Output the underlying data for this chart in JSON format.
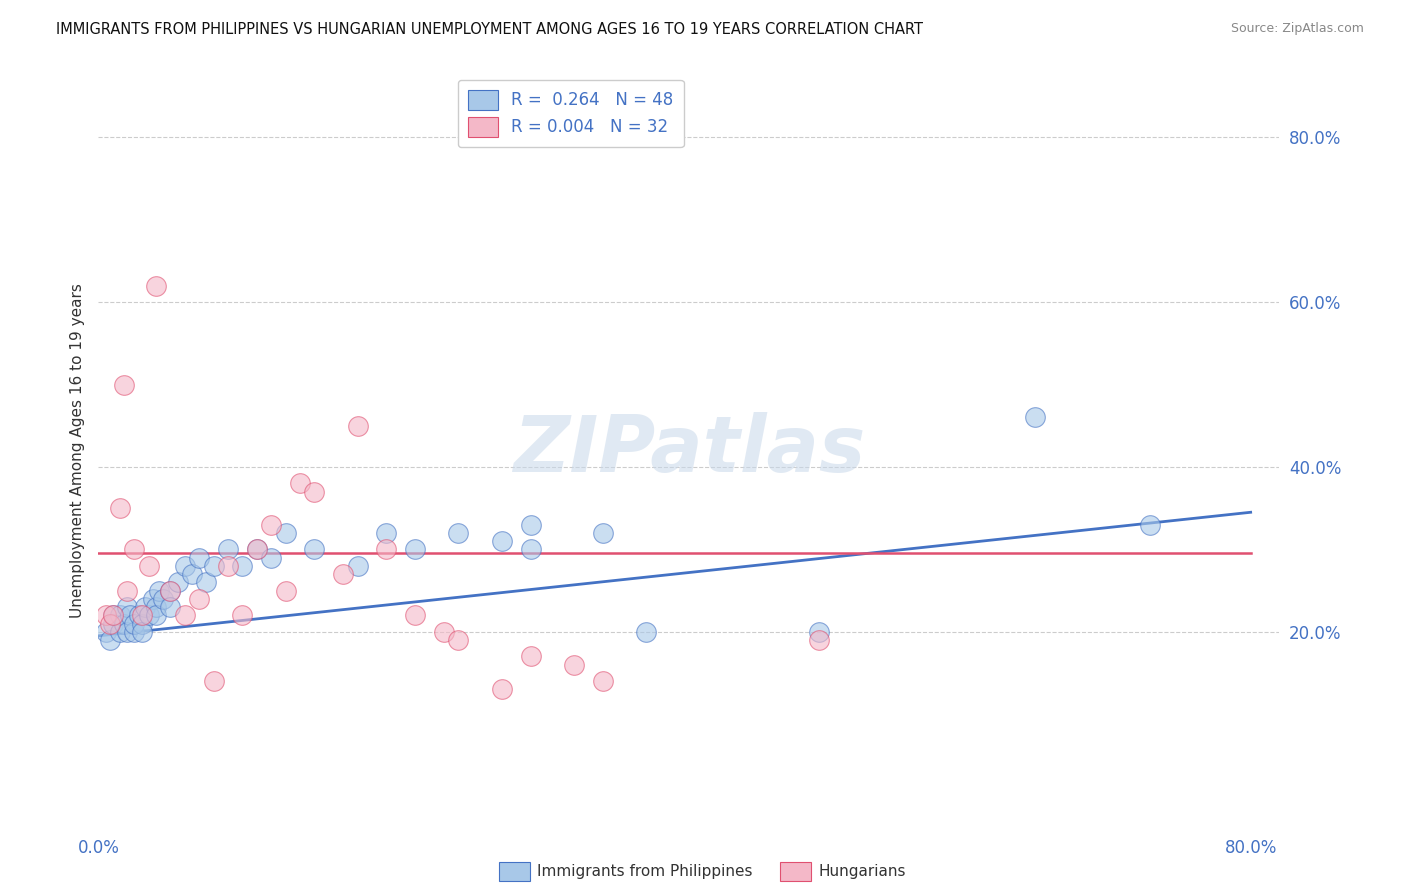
{
  "title": "IMMIGRANTS FROM PHILIPPINES VS HUNGARIAN UNEMPLOYMENT AMONG AGES 16 TO 19 YEARS CORRELATION CHART",
  "source": "Source: ZipAtlas.com",
  "ylabel": "Unemployment Among Ages 16 to 19 years",
  "legend_label1": "Immigrants from Philippines",
  "legend_label2": "Hungarians",
  "legend_r1": "R =  0.264",
  "legend_n1": "N = 48",
  "legend_r2": "R = 0.004",
  "legend_n2": "N = 32",
  "xlim": [
    0.0,
    0.82
  ],
  "ylim": [
    -0.04,
    0.88
  ],
  "yticks": [
    0.2,
    0.4,
    0.6,
    0.8
  ],
  "ytick_labels": [
    "20.0%",
    "40.0%",
    "60.0%",
    "80.0%"
  ],
  "xtick_labels": [
    "0.0%",
    "80.0%"
  ],
  "xtick_pos": [
    0.0,
    0.8
  ],
  "color_blue": "#a8c8e8",
  "color_pink": "#f4b8c8",
  "line_blue": "#4472c4",
  "line_pink": "#e05070",
  "grid_color": "#cccccc",
  "philippines_x": [
    0.005,
    0.008,
    0.01,
    0.01,
    0.015,
    0.015,
    0.018,
    0.02,
    0.02,
    0.022,
    0.025,
    0.025,
    0.028,
    0.03,
    0.03,
    0.032,
    0.035,
    0.038,
    0.04,
    0.04,
    0.042,
    0.045,
    0.05,
    0.05,
    0.055,
    0.06,
    0.065,
    0.07,
    0.075,
    0.08,
    0.09,
    0.1,
    0.11,
    0.12,
    0.13,
    0.15,
    0.18,
    0.2,
    0.22,
    0.25,
    0.28,
    0.3,
    0.3,
    0.35,
    0.38,
    0.5,
    0.65,
    0.73
  ],
  "philippines_y": [
    0.2,
    0.19,
    0.22,
    0.21,
    0.2,
    0.22,
    0.21,
    0.2,
    0.23,
    0.22,
    0.2,
    0.21,
    0.22,
    0.21,
    0.2,
    0.23,
    0.22,
    0.24,
    0.23,
    0.22,
    0.25,
    0.24,
    0.25,
    0.23,
    0.26,
    0.28,
    0.27,
    0.29,
    0.26,
    0.28,
    0.3,
    0.28,
    0.3,
    0.29,
    0.32,
    0.3,
    0.28,
    0.32,
    0.3,
    0.32,
    0.31,
    0.33,
    0.3,
    0.32,
    0.2,
    0.2,
    0.46,
    0.33
  ],
  "hungarians_x": [
    0.005,
    0.008,
    0.01,
    0.015,
    0.018,
    0.02,
    0.025,
    0.03,
    0.035,
    0.04,
    0.05,
    0.06,
    0.07,
    0.08,
    0.09,
    0.1,
    0.11,
    0.12,
    0.13,
    0.14,
    0.15,
    0.17,
    0.18,
    0.2,
    0.22,
    0.24,
    0.25,
    0.28,
    0.3,
    0.33,
    0.35,
    0.5
  ],
  "hungarians_y": [
    0.22,
    0.21,
    0.22,
    0.35,
    0.5,
    0.25,
    0.3,
    0.22,
    0.28,
    0.62,
    0.25,
    0.22,
    0.24,
    0.14,
    0.28,
    0.22,
    0.3,
    0.33,
    0.25,
    0.38,
    0.37,
    0.27,
    0.45,
    0.3,
    0.22,
    0.2,
    0.19,
    0.13,
    0.17,
    0.16,
    0.14,
    0.19
  ],
  "blue_line_x": [
    0.0,
    0.8
  ],
  "blue_line_y": [
    0.195,
    0.345
  ],
  "pink_line_x": [
    0.0,
    0.8
  ],
  "pink_line_y": [
    0.295,
    0.295
  ]
}
